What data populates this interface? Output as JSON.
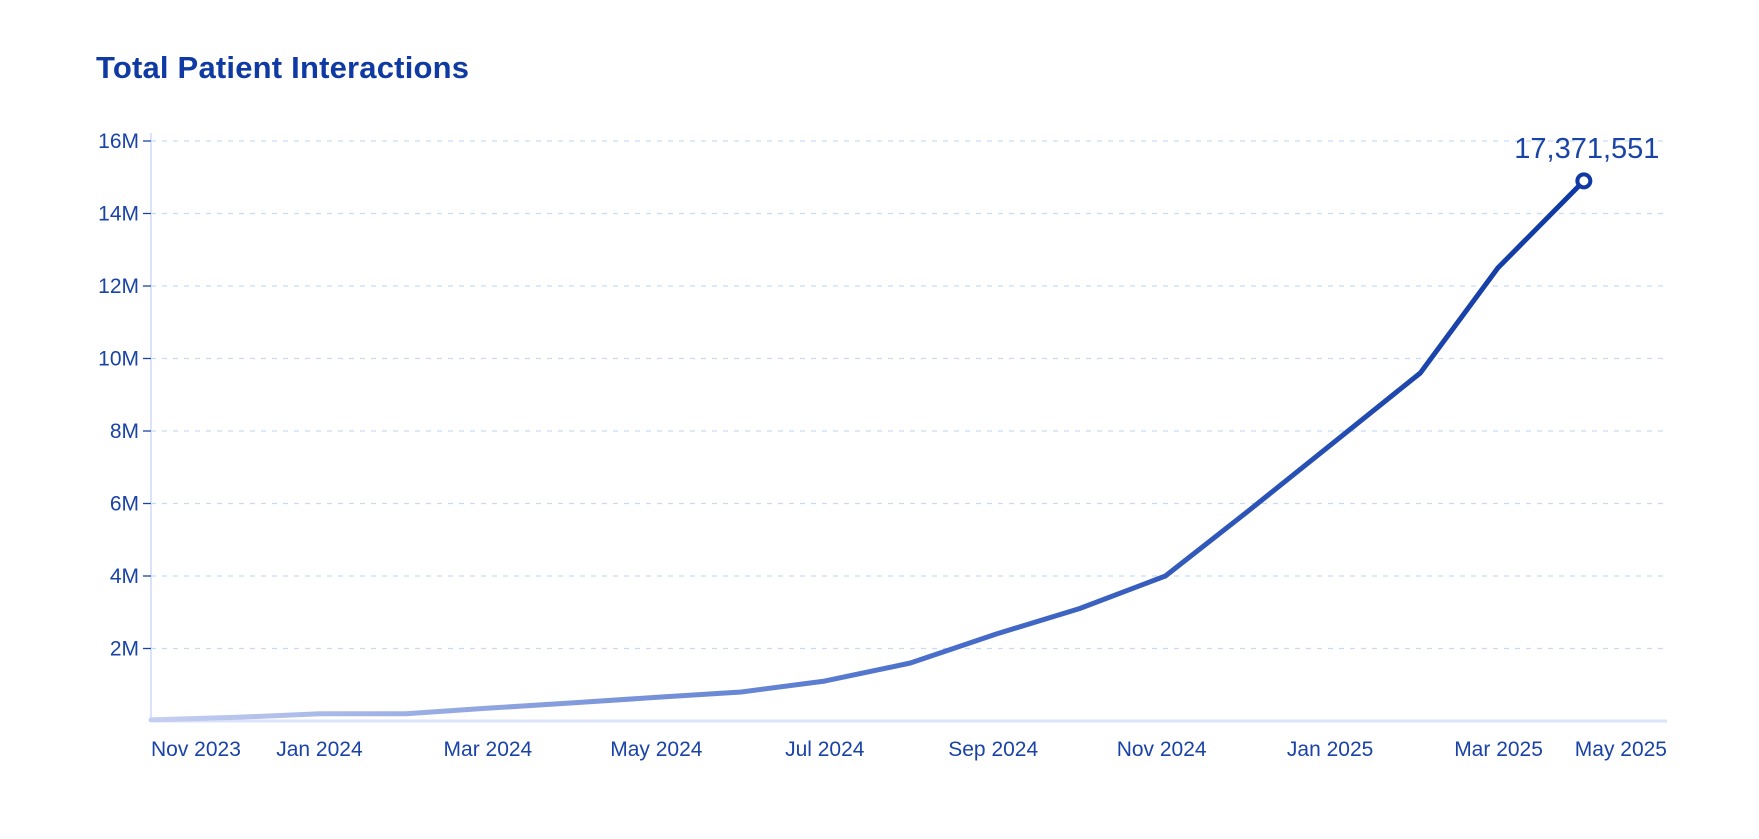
{
  "chart_data": {
    "type": "line",
    "title": "Total Patient Interactions",
    "xlabel": "",
    "ylabel": "",
    "x_ticks": [
      "Nov 2023",
      "Jan 2024",
      "Mar 2024",
      "May 2024",
      "Jul 2024",
      "Sep 2024",
      "Nov 2024",
      "Jan 2025",
      "Mar 2025",
      "May 2025"
    ],
    "y_ticks": [
      "2M",
      "4M",
      "6M",
      "8M",
      "10M",
      "12M",
      "14M",
      "16M"
    ],
    "y_tick_values": [
      2000000,
      4000000,
      6000000,
      8000000,
      10000000,
      12000000,
      14000000,
      16000000
    ],
    "ylim": [
      0,
      16000000
    ],
    "xlim": [
      "2023-11-01",
      "2025-05-01"
    ],
    "grid": true,
    "grid_style": "dashed",
    "series": [
      {
        "x": [
          "2023-11-01",
          "2023-12-01",
          "2024-01-01",
          "2024-02-01",
          "2024-03-01",
          "2024-04-01",
          "2024-05-01",
          "2024-06-01",
          "2024-07-01",
          "2024-08-01",
          "2024-09-01",
          "2024-10-01",
          "2024-11-01",
          "2024-12-01",
          "2025-01-01",
          "2025-02-01",
          "2025-03-01",
          "2025-04-01"
        ],
        "values": [
          30000,
          100000,
          200000,
          200000,
          350000,
          500000,
          650000,
          800000,
          1100000,
          1600000,
          2400000,
          3100000,
          4000000,
          5800000,
          7700000,
          9600000,
          12500000,
          14900000
        ]
      }
    ],
    "end_label": "17,371,551",
    "colors": {
      "line_start": "#c5cff0",
      "line_end": "#0f3aa3",
      "text": "#1a43a8",
      "grid": "#c6dcf3",
      "axis": "#dbe3fa"
    }
  }
}
